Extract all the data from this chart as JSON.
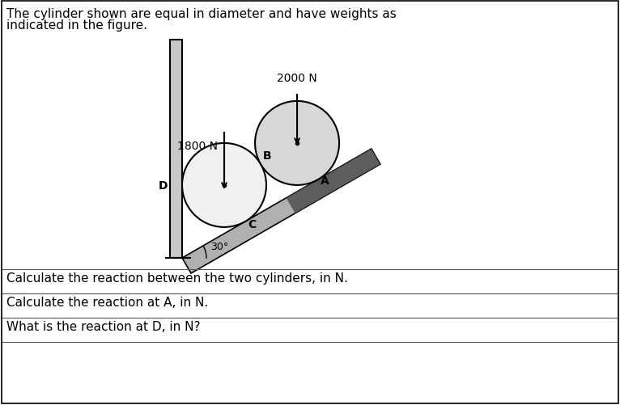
{
  "title_line1": "The cylinder shown are equal in diameter and have weights as",
  "title_line2": "indicated in the figure.",
  "weight1": "1800 N",
  "weight2": "2000 N",
  "label_B": "B",
  "label_D": "D",
  "label_A": "A",
  "label_C": "C",
  "angle_label": "30°",
  "q1": "Calculate the reaction between the two cylinders, in N.",
  "q2": "Calculate the reaction at A, in N.",
  "q3": "What is the reaction at D, in N?",
  "bg_color": "#ffffff",
  "text_color": "#000000",
  "cyl1_face": "#f0f0f0",
  "cyl2_face": "#d8d8d8",
  "wall_face": "#c8c8c8",
  "incline_face": "#b0b0b0",
  "incline_dark": "#505050"
}
